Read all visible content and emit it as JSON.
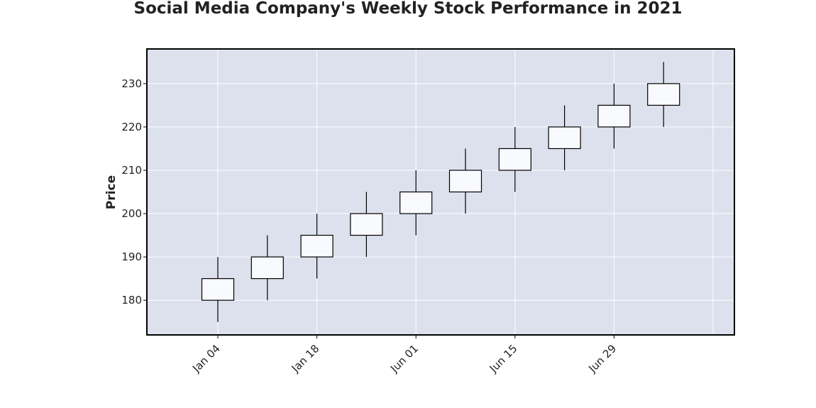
{
  "chart_data": {
    "type": "candlestick",
    "title": "Social Media Company's Weekly Stock Performance in 2021",
    "xlabel": "",
    "ylabel": "Price",
    "ylim": [
      172,
      238
    ],
    "y_ticks": [
      180,
      190,
      200,
      210,
      220,
      230
    ],
    "x_tick_labels": [
      "Jan 04",
      "Jan 18",
      "Jun 01",
      "Jun 15",
      "Jun 29"
    ],
    "grid": true,
    "colors": {
      "plot_background": "#dce1ed",
      "grid": "#ffffff",
      "candle_fill": "#f9fafd",
      "candle_edge": "#000000",
      "wick": "#000000"
    },
    "candles": [
      {
        "open": 180,
        "close": 185,
        "high": 190,
        "low": 175
      },
      {
        "open": 185,
        "close": 190,
        "high": 195,
        "low": 180
      },
      {
        "open": 190,
        "close": 195,
        "high": 200,
        "low": 185
      },
      {
        "open": 195,
        "close": 200,
        "high": 205,
        "low": 190
      },
      {
        "open": 200,
        "close": 205,
        "high": 210,
        "low": 195
      },
      {
        "open": 205,
        "close": 210,
        "high": 215,
        "low": 200
      },
      {
        "open": 210,
        "close": 215,
        "high": 220,
        "low": 205
      },
      {
        "open": 215,
        "close": 220,
        "high": 225,
        "low": 210
      },
      {
        "open": 220,
        "close": 225,
        "high": 230,
        "low": 215
      },
      {
        "open": 225,
        "close": 230,
        "high": 235,
        "low": 220
      }
    ]
  }
}
